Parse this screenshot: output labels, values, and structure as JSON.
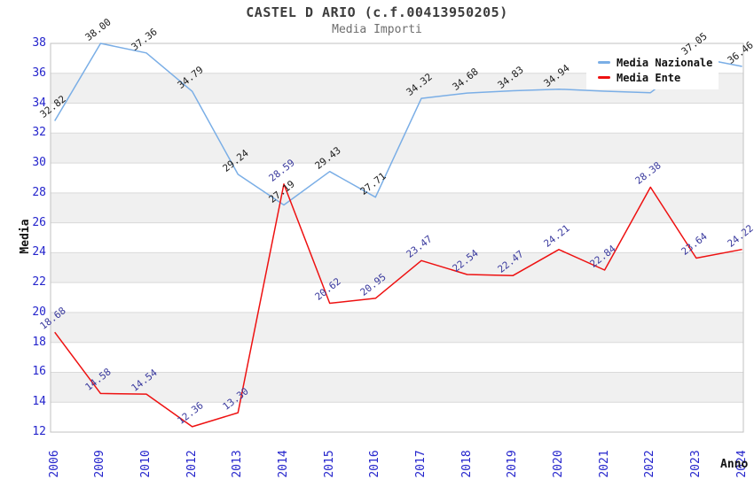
{
  "title": "CASTEL D ARIO (c.f.00413950205)",
  "subtitle": "Media Importi",
  "axes": {
    "y_title": "Media",
    "x_title": "Anno"
  },
  "colors": {
    "tick_blue": "#2424cc",
    "title_color": "#3c3c3c",
    "subtitle_color": "#6e6e6e",
    "band": "#f0f0f0",
    "grid": "#d9d9d9",
    "border": "#c2c2c2",
    "nazionale_line": "#7aaee6",
    "ente_line": "#ee1111",
    "nazionale_label": "#1c1c1c",
    "ente_label": "#3a3a9e",
    "legend_bg": "#ffffff"
  },
  "chart_data": {
    "type": "line",
    "title": "CASTEL D ARIO (c.f.00413950205)",
    "subtitle": "Media Importi",
    "xlabel": "Anno",
    "ylabel": "Media",
    "x": [
      "2006",
      "2009",
      "2010",
      "2012",
      "2013",
      "2014",
      "2015",
      "2016",
      "2017",
      "2018",
      "2019",
      "2020",
      "2021",
      "2022",
      "2023",
      "2024"
    ],
    "series": [
      {
        "name": "Media Nazionale",
        "color": "#7aaee6",
        "label_color": "#1c1c1c",
        "values": [
          32.82,
          38.0,
          37.36,
          34.79,
          29.24,
          27.19,
          29.43,
          27.71,
          34.32,
          34.68,
          34.83,
          34.94,
          34.8,
          34.7,
          37.05,
          36.46
        ],
        "labels": [
          "32.82",
          "38.00",
          "37.36",
          "34.79",
          "29.24",
          "27.19",
          "29.43",
          "27.71",
          "34.32",
          "34.68",
          "34.83",
          "34.94",
          null,
          null,
          "37.05",
          "36.46"
        ]
      },
      {
        "name": "Media Ente",
        "color": "#ee1111",
        "label_color": "#3a3a9e",
        "values": [
          18.68,
          14.58,
          14.54,
          12.36,
          13.3,
          28.59,
          20.62,
          20.95,
          23.47,
          22.54,
          22.47,
          24.21,
          22.84,
          28.38,
          23.64,
          24.22
        ],
        "labels": [
          "18.68",
          "14.58",
          "14.54",
          "12.36",
          "13.30",
          "28.59",
          "20.62",
          "20.95",
          "23.47",
          "22.54",
          "22.47",
          "24.21",
          "22.84",
          "28.38",
          "23.64",
          "24.22"
        ]
      }
    ],
    "ylim": [
      12,
      38
    ],
    "yticks": [
      12,
      14,
      16,
      18,
      20,
      22,
      24,
      26,
      28,
      30,
      32,
      34,
      36,
      38
    ],
    "grid": "alternating-horizontal-bands",
    "legend_position": "top-right",
    "note_hidden_labels": "Media Nazionale labels for 2021 and 2022 are hidden behind the legend box; those two values are estimated from the line position."
  }
}
